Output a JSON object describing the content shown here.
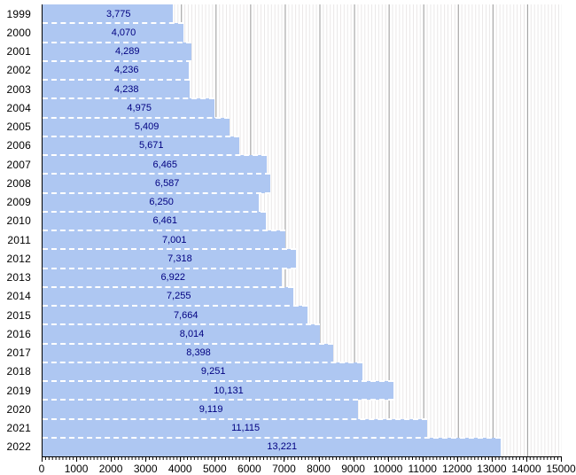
{
  "chart_data": {
    "type": "bar",
    "orientation": "horizontal",
    "title": "",
    "xlabel": "",
    "ylabel": "",
    "categories": [
      "1999",
      "2000",
      "2001",
      "2002",
      "2003",
      "2004",
      "2005",
      "2006",
      "2007",
      "2008",
      "2009",
      "2010",
      "2011",
      "2012",
      "2013",
      "2014",
      "2015",
      "2016",
      "2017",
      "2018",
      "2019",
      "2020",
      "2021",
      "2022"
    ],
    "values": [
      3775,
      4070,
      4289,
      4236,
      4238,
      4975,
      5409,
      5671,
      6465,
      6587,
      6250,
      6461,
      7001,
      7318,
      6922,
      7255,
      7664,
      8014,
      8398,
      9251,
      10131,
      9119,
      11115,
      13221
    ],
    "value_labels": [
      "3,775",
      "4,070",
      "4,289",
      "4,236",
      "4,238",
      "4,975",
      "5,409",
      "5,671",
      "6,465",
      "6,587",
      "6,250",
      "6,461",
      "7,001",
      "7,318",
      "6,922",
      "7,255",
      "7,664",
      "8,014",
      "8,398",
      "9,251",
      "10,131",
      "9,119",
      "11,115",
      "13,221"
    ],
    "xlim": [
      0,
      15000
    ],
    "x_major_ticks": [
      0,
      1000,
      2000,
      3000,
      4000,
      5000,
      6000,
      7000,
      8000,
      9000,
      10000,
      11000,
      12000,
      13000,
      14000,
      15000
    ],
    "x_tick_labels": [
      "0",
      "1000",
      "2000",
      "3000",
      "4000",
      "5000",
      "6000",
      "7000",
      "8000",
      "9000",
      "10000",
      "11000",
      "12000",
      "13000",
      "14000",
      "15000"
    ],
    "x_minor_tick_interval": 100,
    "grid": "vertical, minor and major, shown behind bars",
    "legend": "none",
    "colors": {
      "background": "#ffffff",
      "bar_fill": "#aec7f2",
      "bar_separator": "#ffffff",
      "value_text": "#000080",
      "axis_text": "#000000",
      "axis_line": "#000000",
      "grid_major": "#999999",
      "grid_minor": "#eae7e7"
    }
  }
}
